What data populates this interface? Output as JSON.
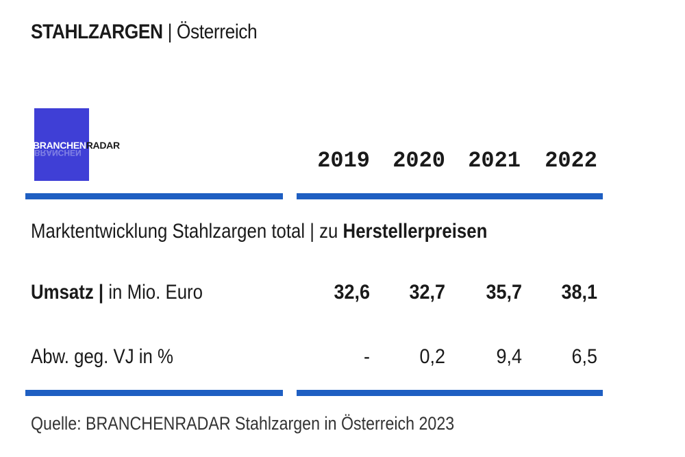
{
  "title": {
    "main": "STAHLZARGEN",
    "separator": "|",
    "region": "Österreich"
  },
  "logo": {
    "part1": "BRANCHEN",
    "part2": "RADAR",
    "echo": "BRANCHEN",
    "color": "#3f3fd6"
  },
  "years": [
    "2019",
    "2020",
    "2021",
    "2022"
  ],
  "section": {
    "label": "Marktentwicklung Stahlzargen total | zu ",
    "label_bold": "Herstellerpreisen"
  },
  "rows": [
    {
      "label_bold": "Umsatz |",
      "label": " in Mio. Euro",
      "values": [
        "32,6",
        "32,7",
        "35,7",
        "38,1"
      ]
    },
    {
      "label_bold": "",
      "label": "Abw. geg. VJ in %",
      "values": [
        "-",
        "0,2",
        "9,4",
        "6,5"
      ]
    }
  ],
  "source": "Quelle: BRANCHENRADAR Stahlzargen in Österreich 2023",
  "colors": {
    "rule": "#1f5fc2"
  }
}
